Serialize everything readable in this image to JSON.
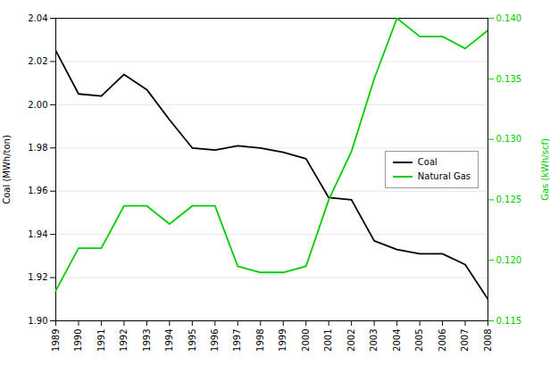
{
  "chart_data": {
    "type": "line",
    "x": [
      1989,
      1990,
      1991,
      1992,
      1993,
      1994,
      1995,
      1996,
      1997,
      1998,
      1999,
      2000,
      2001,
      2002,
      2003,
      2004,
      2005,
      2006,
      2007,
      2008
    ],
    "xlim": [
      1989,
      2008
    ],
    "xticks": [
      1989,
      1990,
      1991,
      1992,
      1993,
      1994,
      1995,
      1996,
      1997,
      1998,
      1999,
      2000,
      2001,
      2002,
      2003,
      2004,
      2005,
      2006,
      2007,
      2008
    ],
    "ylabel": "Coal (MWh/ton)",
    "y2label": "Gas (kWh/scf)",
    "ylim": [
      1.9,
      2.04
    ],
    "yticks": [
      {
        "value": 1.9,
        "label": "1.90"
      },
      1.92,
      1.94,
      1.96,
      1.98,
      {
        "value": 2.0,
        "label": "2.00"
      },
      2.02,
      2.04
    ],
    "y2lim": [
      0.115,
      0.14
    ],
    "y2ticks": [
      0.115,
      {
        "value": 0.12,
        "label": "0.120"
      },
      0.125,
      {
        "value": 0.13,
        "label": "0.130"
      },
      0.135,
      {
        "value": 0.14,
        "label": "0.140"
      }
    ],
    "grid": true,
    "legend": "right",
    "series": [
      {
        "name": "Coal",
        "color": "#000000",
        "axis": "y",
        "values": [
          2.025,
          2.005,
          2.004,
          2.014,
          2.007,
          1.993,
          1.98,
          1.979,
          1.981,
          1.98,
          1.978,
          1.975,
          1.957,
          1.956,
          1.937,
          1.933,
          1.931,
          1.931,
          1.926,
          1.91
        ]
      },
      {
        "name": "Natural Gas",
        "color": "#00cc00",
        "axis": "y2",
        "values": [
          0.1175,
          0.121,
          0.121,
          0.1245,
          0.1245,
          0.123,
          0.1245,
          0.1245,
          0.1195,
          0.119,
          0.119,
          0.1195,
          0.125,
          0.129,
          0.135,
          0.14,
          0.1385,
          0.1385,
          0.1375,
          0.139
        ]
      }
    ]
  }
}
